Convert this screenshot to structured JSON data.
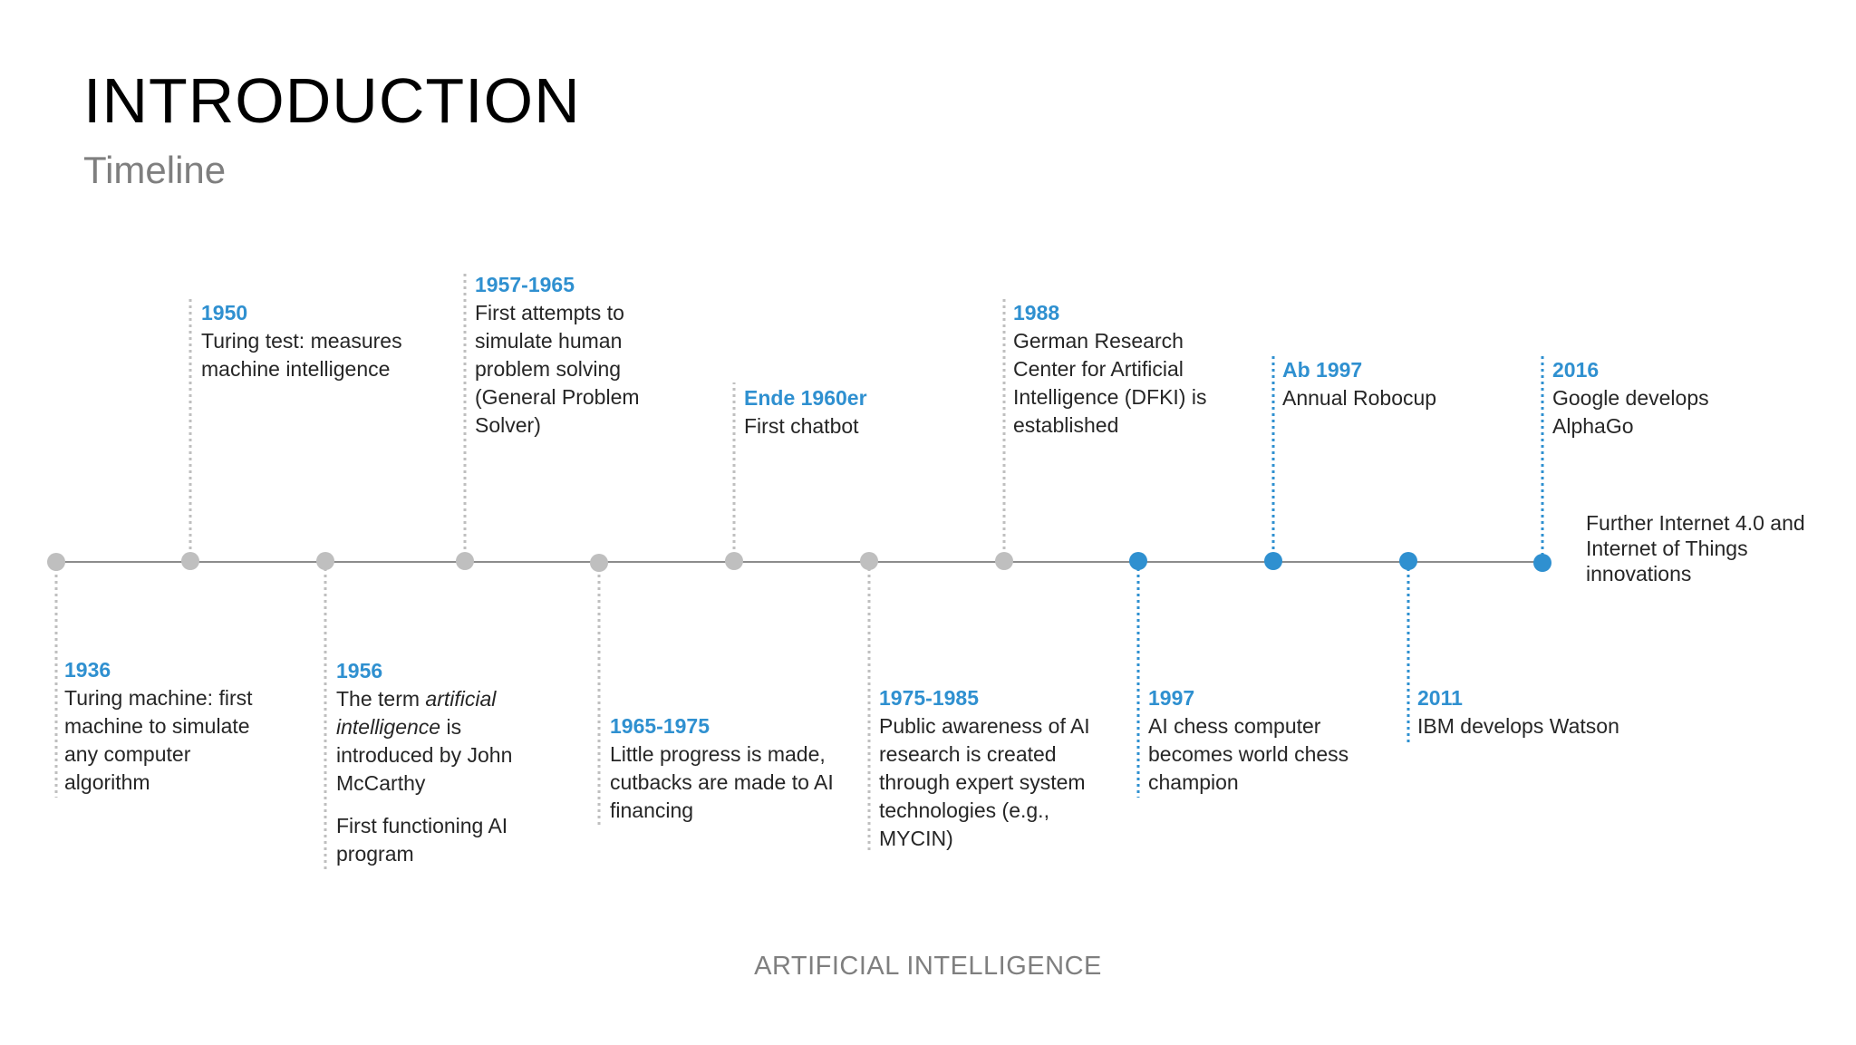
{
  "header": {
    "title": "INTRODUCTION",
    "subtitle": "Timeline"
  },
  "footer": {
    "text": "ARTIFICIAL INTELLIGENCE"
  },
  "colors": {
    "accent": "#2f90d0",
    "past_dot": "#bfbfbf",
    "axis": "#8c8c8c",
    "text": "#262626",
    "muted": "#7f7f7f"
  },
  "events": [
    {
      "year": "1936",
      "desc": "Turing machine: first machine to simulate any computer algorithm"
    },
    {
      "year": "1950",
      "desc": "Turing test: measures machine intelligence"
    },
    {
      "year": "1956",
      "desc_pre": "The term ",
      "desc_em": "artificial intelligence",
      "desc_post": " is introduced by John McCarthy",
      "desc2": "First functioning AI program"
    },
    {
      "year": "1957-1965",
      "desc": "First attempts to simulate human problem solving (General Problem Solver)"
    },
    {
      "year": "1965-1975",
      "desc": "Little progress is made, cutbacks  are made to AI financing"
    },
    {
      "year": "Ende 1960er",
      "desc": "First chatbot"
    },
    {
      "year": "1975-1985",
      "desc": "Public awareness of AI research is created through expert system technologies (e.g., MYCIN)"
    },
    {
      "year": "1988",
      "desc": "German Research Center for Artificial Intelligence (DFKI) is established"
    },
    {
      "year": "1997",
      "desc": "AI chess computer becomes world chess champion"
    },
    {
      "year": "Ab 1997",
      "desc": "Annual Robocup"
    },
    {
      "year": "2011",
      "desc": "IBM develops Watson"
    },
    {
      "year": "2016",
      "desc": "Google develops AlphaGo"
    }
  ],
  "final_note": "Further Internet 4.0 and Internet of Things innovations"
}
